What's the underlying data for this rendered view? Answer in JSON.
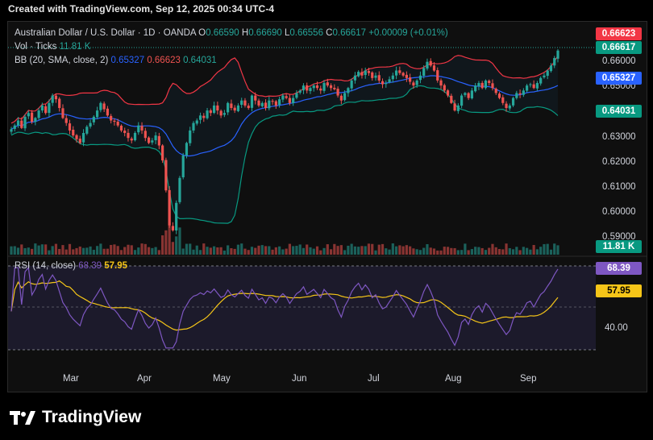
{
  "header": "Created with TradingView.com, Sep 12, 2025 00:34 UTC-4",
  "legend": {
    "title": "Australian Dollar / U.S. Dollar · 1D · OANDA",
    "o_label": "O",
    "o_value": "0.66590",
    "h_label": "H",
    "h_value": "0.66690",
    "l_label": "L",
    "l_value": "0.66556",
    "c_label": "C",
    "c_value": "0.66617",
    "change": "+0.00009 (+0.01%)",
    "vol_label": "Vol · Ticks",
    "vol_value": "11.81 K",
    "bb_label": "BB (20, SMA, close, 2)",
    "bb_basis": "0.65327",
    "bb_upper": "0.66623",
    "bb_lower": "0.64031",
    "rsi_label": "RSI (14, close)",
    "rsi_value": "68.39",
    "rsi_ma": "57.95"
  },
  "badges": {
    "upper": "0.66623",
    "close": "0.66617",
    "basis": "0.65327",
    "lower": "0.64031",
    "volume": "11.81 K",
    "rsi": "68.39",
    "rsi_ma": "57.95"
  },
  "price_axis": [
    "0.66000",
    "0.65000",
    "0.63000",
    "0.62000",
    "0.61000",
    "0.60000",
    "0.59000"
  ],
  "rsi_axis": [
    "40.00"
  ],
  "time_axis": [
    "Mar",
    "Apr",
    "May",
    "Jun",
    "Jul",
    "Aug",
    "Sep"
  ],
  "brand": "TradingView",
  "colors": {
    "up": "#26a69a",
    "down": "#ef5350",
    "basis": "#2962ff",
    "upper": "#f23645",
    "lower": "#089981",
    "rsi": "#7e57c2",
    "rsi_ma": "#f5c518"
  },
  "chart_data": {
    "type": "candlestick",
    "symbol": "AUDUSD",
    "timeframe": "1D",
    "price_range": [
      0.5875,
      0.6685
    ],
    "rsi_range": [
      28,
      76
    ],
    "closes": [
      0.6345,
      0.636,
      0.638,
      0.635,
      0.6395,
      0.641,
      0.6375,
      0.639,
      0.642,
      0.644,
      0.641,
      0.645,
      0.648,
      0.6465,
      0.643,
      0.639,
      0.637,
      0.634,
      0.632,
      0.6305,
      0.629,
      0.633,
      0.6355,
      0.637,
      0.6395,
      0.642,
      0.645,
      0.6425,
      0.64,
      0.638,
      0.6375,
      0.636,
      0.634,
      0.633,
      0.631,
      0.63,
      0.633,
      0.636,
      0.634,
      0.631,
      0.629,
      0.63,
      0.632,
      0.628,
      0.622,
      0.61,
      0.596,
      0.594,
      0.605,
      0.615,
      0.624,
      0.629,
      0.634,
      0.637,
      0.638,
      0.64,
      0.639,
      0.642,
      0.641,
      0.644,
      0.642,
      0.64,
      0.641,
      0.645,
      0.643,
      0.642,
      0.644,
      0.646,
      0.644,
      0.643,
      0.648,
      0.646,
      0.644,
      0.645,
      0.643,
      0.646,
      0.6455,
      0.644,
      0.6465,
      0.648,
      0.647,
      0.645,
      0.647,
      0.649,
      0.65,
      0.652,
      0.65,
      0.651,
      0.652,
      0.651,
      0.65,
      0.653,
      0.652,
      0.651,
      0.6505,
      0.648,
      0.646,
      0.649,
      0.651,
      0.654,
      0.656,
      0.6575,
      0.656,
      0.658,
      0.657,
      0.655,
      0.656,
      0.654,
      0.6525,
      0.653,
      0.6545,
      0.656,
      0.658,
      0.657,
      0.656,
      0.655,
      0.6535,
      0.652,
      0.654,
      0.656,
      0.659,
      0.6615,
      0.66,
      0.658,
      0.654,
      0.652,
      0.65,
      0.648,
      0.645,
      0.642,
      0.644,
      0.648,
      0.649,
      0.647,
      0.65,
      0.652,
      0.653,
      0.651,
      0.654,
      0.653,
      0.651,
      0.649,
      0.647,
      0.645,
      0.643,
      0.644,
      0.647,
      0.649,
      0.6485,
      0.65,
      0.652,
      0.6525,
      0.651,
      0.653,
      0.655,
      0.656,
      0.658,
      0.66,
      0.663,
      0.666
    ]
  }
}
